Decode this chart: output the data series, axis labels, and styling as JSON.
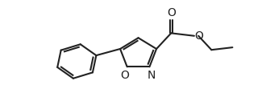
{
  "background_color": "#ffffff",
  "line_color": "#222222",
  "line_width": 1.5,
  "font_size": 9,
  "figsize": [
    3.3,
    1.26
  ],
  "dpi": 100,
  "xlim": [
    -1,
    9
  ],
  "ylim": [
    -0.5,
    4.0
  ]
}
